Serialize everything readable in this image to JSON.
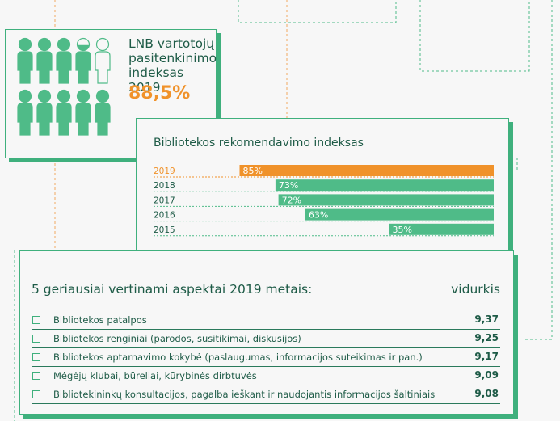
{
  "lnb": {
    "title": "LNB vartotojų pasitenkinimo indeksas 2019",
    "value": "88,5%",
    "satisfaction_fraction": 0.885
  },
  "recommendation": {
    "title": "Bibliotekos rekomendavimo indeksas"
  },
  "top_aspects": {
    "title": "5 geriausiai vertinami aspektai 2019 metais:",
    "column_label": "vidurkis",
    "items": [
      {
        "label": "Bibliotekos patalpos",
        "value": "9,37"
      },
      {
        "label": "Bibliotekos renginiai (parodos, susitikimai, diskusijos)",
        "value": "9,25"
      },
      {
        "label": "Bibliotekos aptarnavimo kokybė (paslaugumas, informacijos suteikimas ir pan.)",
        "value": "9,17"
      },
      {
        "label": "Mėgėjų klubai, būreliai, kūrybinės dirbtuvės",
        "value": "9,09"
      },
      {
        "label": "Bibliotekininkų konsultacijos, pagalba ieškant ir naudojantis informacijos šaltiniais",
        "value": "9,08"
      }
    ]
  },
  "colors": {
    "green": "#4fbb88",
    "orange": "#f0922a",
    "dark_green": "#1e5b47"
  },
  "chart_data": [
    {
      "type": "bar",
      "title": "Bibliotekos rekomendavimo indeksas",
      "categories": [
        "2019",
        "2018",
        "2017",
        "2016",
        "2015"
      ],
      "values": [
        85,
        73,
        72,
        63,
        35
      ],
      "value_labels": [
        "85%",
        "73%",
        "72%",
        "63%",
        "35%"
      ],
      "xlim": [
        0,
        100
      ],
      "orientation": "horizontal",
      "highlight": "2019"
    }
  ]
}
